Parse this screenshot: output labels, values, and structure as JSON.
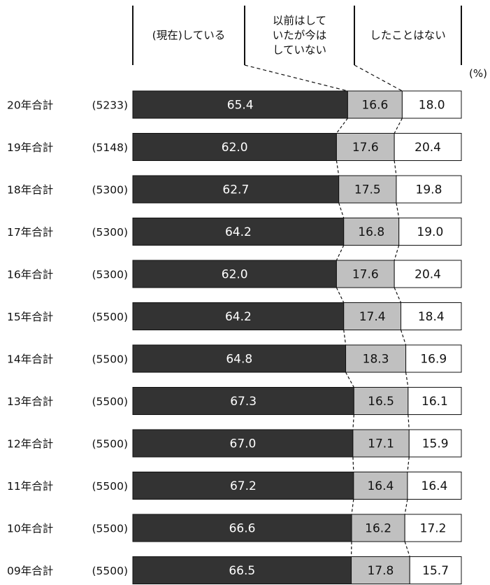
{
  "chart_data": {
    "type": "bar",
    "orientation": "horizontal",
    "stacked": true,
    "percent": true,
    "unit": "(%)",
    "xlim": [
      0,
      100
    ],
    "legend_placement": "top",
    "categories": [
      {
        "year": "20年合計",
        "n": "(5233)"
      },
      {
        "year": "19年合計",
        "n": "(5148)"
      },
      {
        "year": "18年合計",
        "n": "(5300)"
      },
      {
        "year": "17年合計",
        "n": "(5300)"
      },
      {
        "year": "16年合計",
        "n": "(5300)"
      },
      {
        "year": "15年合計",
        "n": "(5500)"
      },
      {
        "year": "14年合計",
        "n": "(5500)"
      },
      {
        "year": "13年合計",
        "n": "(5500)"
      },
      {
        "year": "12年合計",
        "n": "(5500)"
      },
      {
        "year": "11年合計",
        "n": "(5500)"
      },
      {
        "year": "10年合計",
        "n": "(5500)"
      },
      {
        "year": "09年合計",
        "n": "(5500)"
      }
    ],
    "series": [
      {
        "name": "(現在)している",
        "lines": [
          "(現在)している"
        ],
        "color": "#333333",
        "label_color": "#ffffff",
        "values": [
          65.4,
          62.0,
          62.7,
          64.2,
          62.0,
          64.2,
          64.8,
          67.3,
          67.0,
          67.2,
          66.6,
          66.5
        ]
      },
      {
        "name": "以前はしていたが今はしていない",
        "lines": [
          "以前はして",
          "いたが今は",
          "していない"
        ],
        "color": "#c0c0c0",
        "label_color": "#111111",
        "values": [
          16.6,
          17.6,
          17.5,
          16.8,
          17.6,
          17.4,
          18.3,
          16.5,
          17.1,
          16.4,
          16.2,
          17.8
        ]
      },
      {
        "name": "したことはない",
        "lines": [
          "したことはない"
        ],
        "color": "#ffffff",
        "label_color": "#111111",
        "values": [
          18.0,
          20.4,
          19.8,
          19.0,
          20.4,
          18.4,
          16.9,
          16.1,
          15.9,
          16.4,
          17.2,
          15.7
        ]
      }
    ]
  }
}
